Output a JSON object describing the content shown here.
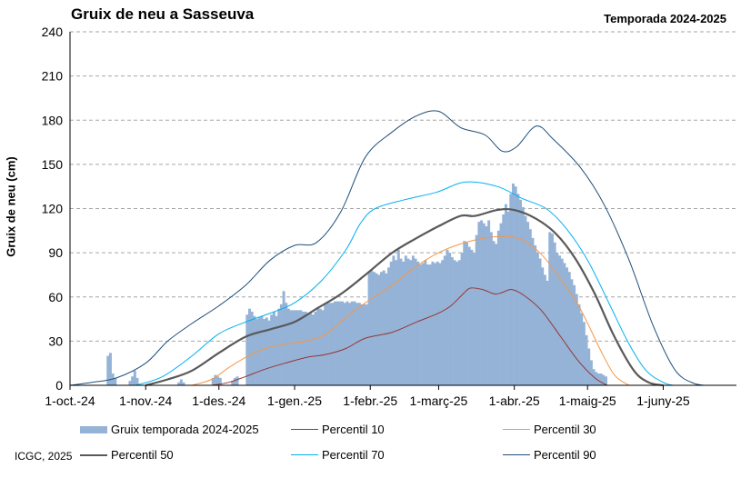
{
  "title": "Gruix de neu a Sasseuva",
  "season": "Temporada 2024-2025",
  "credit": "ICGC, 2025",
  "chart_data": {
    "type": "bar",
    "title": "Gruix de neu a Sasseuva",
    "ylabel": "Gruix de neu (cm)",
    "xlabel": "",
    "ylim": [
      0,
      240
    ],
    "yticks": [
      0,
      30,
      60,
      90,
      120,
      150,
      180,
      210,
      240
    ],
    "xlim": [
      "2024-10-01",
      "2025-06-30"
    ],
    "xtick_dates": [
      "2024-10-01",
      "2024-11-01",
      "2024-12-01",
      "2025-01-01",
      "2025-02-01",
      "2025-03-01",
      "2025-04-01",
      "2025-05-01",
      "2025-06-01"
    ],
    "xtick_labels": [
      "1-oct.-24",
      "1-nov.-24",
      "1-des.-24",
      "1-gen.-25",
      "1-febr.-25",
      "1-març-25",
      "1-abr.-25",
      "1-maig-25",
      "1-juny-25"
    ],
    "grid": "horizontal dashed",
    "legend_position": "bottom",
    "colors": {
      "bars": "#95b3d7",
      "p10": "#963634",
      "p30": "#f79646",
      "p50": "#595959",
      "p70": "#00b0f0",
      "p90": "#1f4e79"
    },
    "bars": {
      "name": "Gruix temporada 2024-2025",
      "points": [
        [
          "2024-10-16",
          20
        ],
        [
          "2024-10-17",
          22
        ],
        [
          "2024-10-18",
          8
        ],
        [
          "2024-10-19",
          5
        ],
        [
          "2024-10-25",
          3
        ],
        [
          "2024-10-26",
          6
        ],
        [
          "2024-10-27",
          10
        ],
        [
          "2024-10-28",
          5
        ],
        [
          "2024-11-14",
          2
        ],
        [
          "2024-11-15",
          4
        ],
        [
          "2024-11-16",
          2
        ],
        [
          "2024-11-28",
          5
        ],
        [
          "2024-11-29",
          7
        ],
        [
          "2024-11-30",
          6
        ],
        [
          "2024-12-01",
          5
        ],
        [
          "2024-12-06",
          3
        ],
        [
          "2024-12-07",
          5
        ],
        [
          "2024-12-08",
          6
        ],
        [
          "2024-12-12",
          48
        ],
        [
          "2024-12-13",
          52
        ],
        [
          "2024-12-14",
          50
        ],
        [
          "2024-12-15",
          47
        ],
        [
          "2024-12-16",
          45
        ],
        [
          "2024-12-17",
          46
        ],
        [
          "2024-12-18",
          47
        ],
        [
          "2024-12-19",
          45
        ],
        [
          "2024-12-20",
          46
        ],
        [
          "2024-12-21",
          44
        ],
        [
          "2024-12-22",
          48
        ],
        [
          "2024-12-23",
          50
        ],
        [
          "2024-12-24",
          47
        ],
        [
          "2024-12-25",
          52
        ],
        [
          "2024-12-26",
          55
        ],
        [
          "2024-12-27",
          64
        ],
        [
          "2024-12-28",
          56
        ],
        [
          "2024-12-29",
          52
        ],
        [
          "2024-12-30",
          51
        ],
        [
          "2024-12-31",
          51
        ],
        [
          "2025-01-01",
          51
        ],
        [
          "2025-01-02",
          51
        ],
        [
          "2025-01-03",
          51
        ],
        [
          "2025-01-04",
          50
        ],
        [
          "2025-01-05",
          50
        ],
        [
          "2025-01-06",
          49
        ],
        [
          "2025-01-07",
          49
        ],
        [
          "2025-01-08",
          48
        ],
        [
          "2025-01-09",
          50
        ],
        [
          "2025-01-10",
          53
        ],
        [
          "2025-01-11",
          52
        ],
        [
          "2025-01-12",
          51
        ],
        [
          "2025-01-13",
          55
        ],
        [
          "2025-01-14",
          56
        ],
        [
          "2025-01-15",
          56
        ],
        [
          "2025-01-16",
          56
        ],
        [
          "2025-01-17",
          57
        ],
        [
          "2025-01-18",
          57
        ],
        [
          "2025-01-19",
          57
        ],
        [
          "2025-01-20",
          57
        ],
        [
          "2025-01-21",
          56
        ],
        [
          "2025-01-22",
          57
        ],
        [
          "2025-01-23",
          56
        ],
        [
          "2025-01-24",
          57
        ],
        [
          "2025-01-25",
          57
        ],
        [
          "2025-01-26",
          56
        ],
        [
          "2025-01-27",
          56
        ],
        [
          "2025-01-28",
          55
        ],
        [
          "2025-01-29",
          55
        ],
        [
          "2025-01-30",
          55
        ],
        [
          "2025-01-31",
          77
        ],
        [
          "2025-02-01",
          78
        ],
        [
          "2025-02-02",
          77
        ],
        [
          "2025-02-03",
          76
        ],
        [
          "2025-02-04",
          75
        ],
        [
          "2025-02-05",
          77
        ],
        [
          "2025-02-06",
          78
        ],
        [
          "2025-02-07",
          76
        ],
        [
          "2025-02-08",
          80
        ],
        [
          "2025-02-09",
          84
        ],
        [
          "2025-02-10",
          88
        ],
        [
          "2025-02-11",
          85
        ],
        [
          "2025-02-12",
          92
        ],
        [
          "2025-02-13",
          86
        ],
        [
          "2025-02-14",
          84
        ],
        [
          "2025-02-15",
          88
        ],
        [
          "2025-02-16",
          86
        ],
        [
          "2025-02-17",
          85
        ],
        [
          "2025-02-18",
          88
        ],
        [
          "2025-02-19",
          86
        ],
        [
          "2025-02-20",
          84
        ],
        [
          "2025-02-21",
          82
        ],
        [
          "2025-02-22",
          83
        ],
        [
          "2025-02-23",
          85
        ],
        [
          "2025-02-24",
          82
        ],
        [
          "2025-02-25",
          82
        ],
        [
          "2025-02-26",
          84
        ],
        [
          "2025-02-27",
          83
        ],
        [
          "2025-02-28",
          84
        ],
        [
          "2025-03-01",
          83
        ],
        [
          "2025-03-02",
          85
        ],
        [
          "2025-03-03",
          88
        ],
        [
          "2025-03-04",
          92
        ],
        [
          "2025-03-05",
          90
        ],
        [
          "2025-03-06",
          87
        ],
        [
          "2025-03-07",
          85
        ],
        [
          "2025-03-08",
          84
        ],
        [
          "2025-03-09",
          85
        ],
        [
          "2025-03-10",
          90
        ],
        [
          "2025-03-11",
          98
        ],
        [
          "2025-03-12",
          97
        ],
        [
          "2025-03-13",
          94
        ],
        [
          "2025-03-14",
          92
        ],
        [
          "2025-03-15",
          90
        ],
        [
          "2025-03-16",
          102
        ],
        [
          "2025-03-17",
          111
        ],
        [
          "2025-03-18",
          112
        ],
        [
          "2025-03-19",
          110
        ],
        [
          "2025-03-20",
          108
        ],
        [
          "2025-03-21",
          112
        ],
        [
          "2025-03-22",
          104
        ],
        [
          "2025-03-23",
          98
        ],
        [
          "2025-03-24",
          96
        ],
        [
          "2025-03-25",
          105
        ],
        [
          "2025-03-26",
          110
        ],
        [
          "2025-03-27",
          116
        ],
        [
          "2025-03-28",
          123
        ],
        [
          "2025-03-29",
          118
        ],
        [
          "2025-03-30",
          130
        ],
        [
          "2025-03-31",
          137
        ],
        [
          "2025-04-01",
          135
        ],
        [
          "2025-04-02",
          130
        ],
        [
          "2025-04-03",
          126
        ],
        [
          "2025-04-04",
          121
        ],
        [
          "2025-04-05",
          115
        ],
        [
          "2025-04-06",
          111
        ],
        [
          "2025-04-07",
          106
        ],
        [
          "2025-04-08",
          100
        ],
        [
          "2025-04-09",
          95
        ],
        [
          "2025-04-10",
          90
        ],
        [
          "2025-04-11",
          86
        ],
        [
          "2025-04-12",
          80
        ],
        [
          "2025-04-13",
          75
        ],
        [
          "2025-04-14",
          71
        ],
        [
          "2025-04-15",
          104
        ],
        [
          "2025-04-16",
          103
        ],
        [
          "2025-04-17",
          97
        ],
        [
          "2025-04-18",
          90
        ],
        [
          "2025-04-19",
          88
        ],
        [
          "2025-04-20",
          86
        ],
        [
          "2025-04-21",
          83
        ],
        [
          "2025-04-22",
          80
        ],
        [
          "2025-04-23",
          77
        ],
        [
          "2025-04-24",
          72
        ],
        [
          "2025-04-25",
          68
        ],
        [
          "2025-04-26",
          62
        ],
        [
          "2025-04-27",
          55
        ],
        [
          "2025-04-28",
          49
        ],
        [
          "2025-04-29",
          43
        ],
        [
          "2025-04-30",
          34
        ],
        [
          "2025-05-01",
          25
        ],
        [
          "2025-05-02",
          17
        ],
        [
          "2025-05-03",
          11
        ],
        [
          "2025-05-04",
          9
        ],
        [
          "2025-05-05",
          8
        ],
        [
          "2025-05-06",
          8
        ],
        [
          "2025-05-07",
          7
        ],
        [
          "2025-05-08",
          6
        ]
      ]
    },
    "series": [
      {
        "name": "Percentil 10",
        "key": "p10",
        "width": 1,
        "points": [
          [
            "2024-11-28",
            0
          ],
          [
            "2024-12-05",
            2
          ],
          [
            "2024-12-12",
            6
          ],
          [
            "2024-12-20",
            11
          ],
          [
            "2024-12-28",
            15
          ],
          [
            "2025-01-06",
            19
          ],
          [
            "2025-01-14",
            21
          ],
          [
            "2025-01-22",
            25
          ],
          [
            "2025-01-30",
            32
          ],
          [
            "2025-02-10",
            36
          ],
          [
            "2025-02-20",
            43
          ],
          [
            "2025-03-01",
            49
          ],
          [
            "2025-03-06",
            54
          ],
          [
            "2025-03-11",
            62
          ],
          [
            "2025-03-14",
            66
          ],
          [
            "2025-03-19",
            65
          ],
          [
            "2025-03-24",
            62
          ],
          [
            "2025-03-27",
            63
          ],
          [
            "2025-03-31",
            65
          ],
          [
            "2025-04-05",
            61
          ],
          [
            "2025-04-12",
            51
          ],
          [
            "2025-04-20",
            33
          ],
          [
            "2025-04-27",
            17
          ],
          [
            "2025-05-04",
            5
          ],
          [
            "2025-05-09",
            0
          ]
        ]
      },
      {
        "name": "Percentil 30",
        "key": "p30",
        "width": 1,
        "points": [
          [
            "2024-11-20",
            0
          ],
          [
            "2024-11-28",
            4
          ],
          [
            "2024-12-05",
            12
          ],
          [
            "2024-12-12",
            19
          ],
          [
            "2024-12-20",
            25
          ],
          [
            "2024-12-28",
            28
          ],
          [
            "2025-01-06",
            30
          ],
          [
            "2025-01-14",
            35
          ],
          [
            "2025-01-22",
            46
          ],
          [
            "2025-01-30",
            56
          ],
          [
            "2025-02-10",
            68
          ],
          [
            "2025-02-20",
            81
          ],
          [
            "2025-03-01",
            90
          ],
          [
            "2025-03-10",
            96
          ],
          [
            "2025-03-20",
            100
          ],
          [
            "2025-03-28",
            101
          ],
          [
            "2025-04-04",
            99
          ],
          [
            "2025-04-12",
            89
          ],
          [
            "2025-04-20",
            72
          ],
          [
            "2025-04-28",
            52
          ],
          [
            "2025-05-06",
            25
          ],
          [
            "2025-05-12",
            7
          ],
          [
            "2025-05-18",
            0
          ]
        ]
      },
      {
        "name": "Percentil 50",
        "key": "p50",
        "width": 2.2,
        "points": [
          [
            "2024-11-01",
            0
          ],
          [
            "2024-11-10",
            4
          ],
          [
            "2024-11-20",
            10
          ],
          [
            "2024-12-01",
            22
          ],
          [
            "2024-12-12",
            33
          ],
          [
            "2024-12-22",
            38
          ],
          [
            "2025-01-01",
            43
          ],
          [
            "2025-01-10",
            52
          ],
          [
            "2025-01-20",
            62
          ],
          [
            "2025-01-30",
            75
          ],
          [
            "2025-02-10",
            90
          ],
          [
            "2025-02-20",
            100
          ],
          [
            "2025-03-01",
            108
          ],
          [
            "2025-03-10",
            115
          ],
          [
            "2025-03-16",
            115
          ],
          [
            "2025-03-25",
            119
          ],
          [
            "2025-04-01",
            119
          ],
          [
            "2025-04-10",
            113
          ],
          [
            "2025-04-18",
            103
          ],
          [
            "2025-04-26",
            86
          ],
          [
            "2025-05-04",
            62
          ],
          [
            "2025-05-12",
            33
          ],
          [
            "2025-05-20",
            10
          ],
          [
            "2025-05-26",
            2
          ],
          [
            "2025-06-01",
            0
          ]
        ]
      },
      {
        "name": "Percentil 70",
        "key": "p70",
        "width": 1,
        "points": [
          [
            "2024-10-28",
            0
          ],
          [
            "2024-11-08",
            6
          ],
          [
            "2024-11-20",
            20
          ],
          [
            "2024-12-01",
            35
          ],
          [
            "2024-12-12",
            43
          ],
          [
            "2024-12-22",
            49
          ],
          [
            "2025-01-01",
            56
          ],
          [
            "2025-01-12",
            71
          ],
          [
            "2025-01-22",
            92
          ],
          [
            "2025-01-28",
            110
          ],
          [
            "2025-02-03",
            120
          ],
          [
            "2025-02-15",
            126
          ],
          [
            "2025-02-28",
            131
          ],
          [
            "2025-03-12",
            138
          ],
          [
            "2025-03-25",
            135
          ],
          [
            "2025-04-04",
            127
          ],
          [
            "2025-04-14",
            120
          ],
          [
            "2025-04-22",
            107
          ],
          [
            "2025-05-01",
            85
          ],
          [
            "2025-05-10",
            55
          ],
          [
            "2025-05-18",
            28
          ],
          [
            "2025-05-25",
            10
          ],
          [
            "2025-06-01",
            2
          ],
          [
            "2025-06-05",
            0
          ]
        ]
      },
      {
        "name": "Percentil 90",
        "key": "p90",
        "width": 1,
        "points": [
          [
            "2024-10-01",
            0
          ],
          [
            "2024-10-10",
            2
          ],
          [
            "2024-10-20",
            5
          ],
          [
            "2024-11-01",
            15
          ],
          [
            "2024-11-10",
            30
          ],
          [
            "2024-11-20",
            42
          ],
          [
            "2024-12-01",
            54
          ],
          [
            "2024-12-12",
            68
          ],
          [
            "2024-12-22",
            85
          ],
          [
            "2025-01-01",
            95
          ],
          [
            "2025-01-10",
            97
          ],
          [
            "2025-01-20",
            118
          ],
          [
            "2025-01-30",
            155
          ],
          [
            "2025-02-10",
            172
          ],
          [
            "2025-02-20",
            183
          ],
          [
            "2025-03-01",
            186
          ],
          [
            "2025-03-10",
            175
          ],
          [
            "2025-03-20",
            170
          ],
          [
            "2025-03-27",
            159
          ],
          [
            "2025-04-02",
            162
          ],
          [
            "2025-04-10",
            176
          ],
          [
            "2025-04-17",
            167
          ],
          [
            "2025-04-28",
            148
          ],
          [
            "2025-05-08",
            122
          ],
          [
            "2025-05-18",
            85
          ],
          [
            "2025-05-28",
            40
          ],
          [
            "2025-06-06",
            10
          ],
          [
            "2025-06-14",
            1
          ],
          [
            "2025-06-18",
            0
          ]
        ]
      }
    ]
  },
  "legend": {
    "bars": "Gruix temporada 2024-2025",
    "p10": "Percentil 10",
    "p30": "Percentil 30",
    "p50": "Percentil 50",
    "p70": "Percentil 70",
    "p90": "Percentil 90"
  }
}
